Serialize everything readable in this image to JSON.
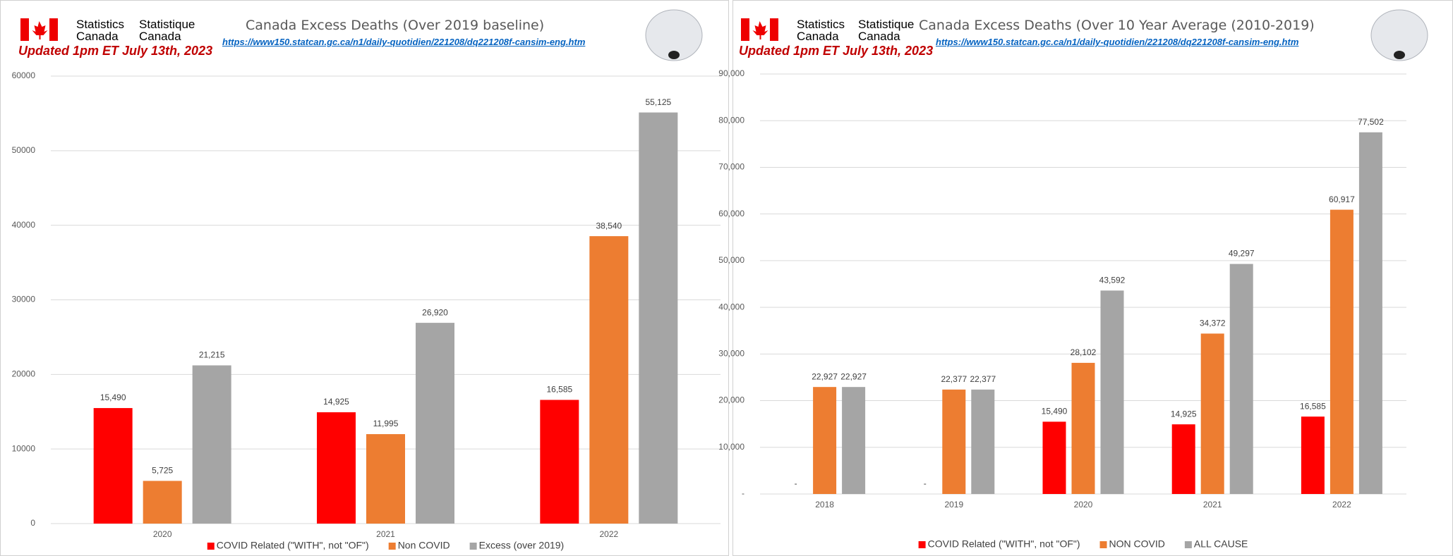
{
  "chart_data": [
    {
      "type": "bar",
      "agency_en": "Statistics Canada",
      "agency_fr": "Statistique Canada",
      "title": "Canada Excess Deaths (Over 2019 baseline)",
      "source_url": "https://www150.statcan.gc.ca/n1/daily-quotidien/221208/dq221208f-cansim-eng.htm",
      "updated": "Updated 1pm ET July 13th, 2023",
      "categories": [
        "2020",
        "2021",
        "2022"
      ],
      "series": [
        {
          "name": "COVID Related (\"WITH\", not \"OF\")",
          "color": "#ff0000",
          "values": [
            15490,
            14925,
            16585
          ],
          "value_labels": [
            "15,490",
            "14,925",
            "16,585"
          ]
        },
        {
          "name": "Non COVID",
          "color": "#ed7d31",
          "values": [
            5725,
            11995,
            38540
          ],
          "value_labels": [
            "5,725",
            "11,995",
            "38,540"
          ]
        },
        {
          "name": "Excess (over 2019)",
          "color": "#a5a5a5",
          "values": [
            21215,
            26920,
            55125
          ],
          "value_labels": [
            "21,215",
            "26,920",
            "55,125"
          ]
        }
      ],
      "ylim": [
        0,
        60000
      ],
      "yticks": [
        0,
        10000,
        20000,
        30000,
        40000,
        50000,
        60000
      ],
      "grid": true,
      "legend": "bottom"
    },
    {
      "type": "bar",
      "agency_en": "Statistics Canada",
      "agency_fr": "Statistique Canada",
      "title": "Canada Excess Deaths (Over 10 Year Average (2010-2019)",
      "source_url": "https://www150.statcan.gc.ca/n1/daily-quotidien/221208/dq221208f-cansim-eng.htm",
      "updated": "Updated 1pm ET July 13th, 2023",
      "categories": [
        "2018",
        "2019",
        "2020",
        "2021",
        "2022"
      ],
      "series": [
        {
          "name": "COVID Related (\"WITH\", not \"OF\")",
          "color": "#ff0000",
          "values": [
            0,
            0,
            15490,
            14925,
            16585
          ],
          "value_labels": [
            "-",
            "-",
            "15,490",
            "14,925",
            "16,585"
          ]
        },
        {
          "name": "NON COVID",
          "color": "#ed7d31",
          "values": [
            22927,
            22377,
            28102,
            34372,
            60917
          ],
          "value_labels": [
            "22,927",
            "22,377",
            "28,102",
            "34,372",
            "60,917"
          ]
        },
        {
          "name": "ALL CAUSE",
          "color": "#a5a5a5",
          "values": [
            22927,
            22377,
            43592,
            49297,
            77502
          ],
          "value_labels": [
            "22,927",
            "22,377",
            "43,592",
            "49,297",
            "77,502"
          ]
        }
      ],
      "ylim": [
        0,
        90000
      ],
      "yticks": [
        {
          "value": 0,
          "label": "-"
        },
        {
          "value": 10000,
          "label": "10,000"
        },
        {
          "value": 20000,
          "label": "20,000"
        },
        {
          "value": 30000,
          "label": "30,000"
        },
        {
          "value": 40000,
          "label": "40,000"
        },
        {
          "value": 50000,
          "label": "50,000"
        },
        {
          "value": 60000,
          "label": "60,000"
        },
        {
          "value": 70000,
          "label": "70,000"
        },
        {
          "value": 80000,
          "label": "80,000"
        },
        {
          "value": 90000,
          "label": "90,000"
        }
      ],
      "grid": true,
      "legend": "bottom"
    }
  ]
}
